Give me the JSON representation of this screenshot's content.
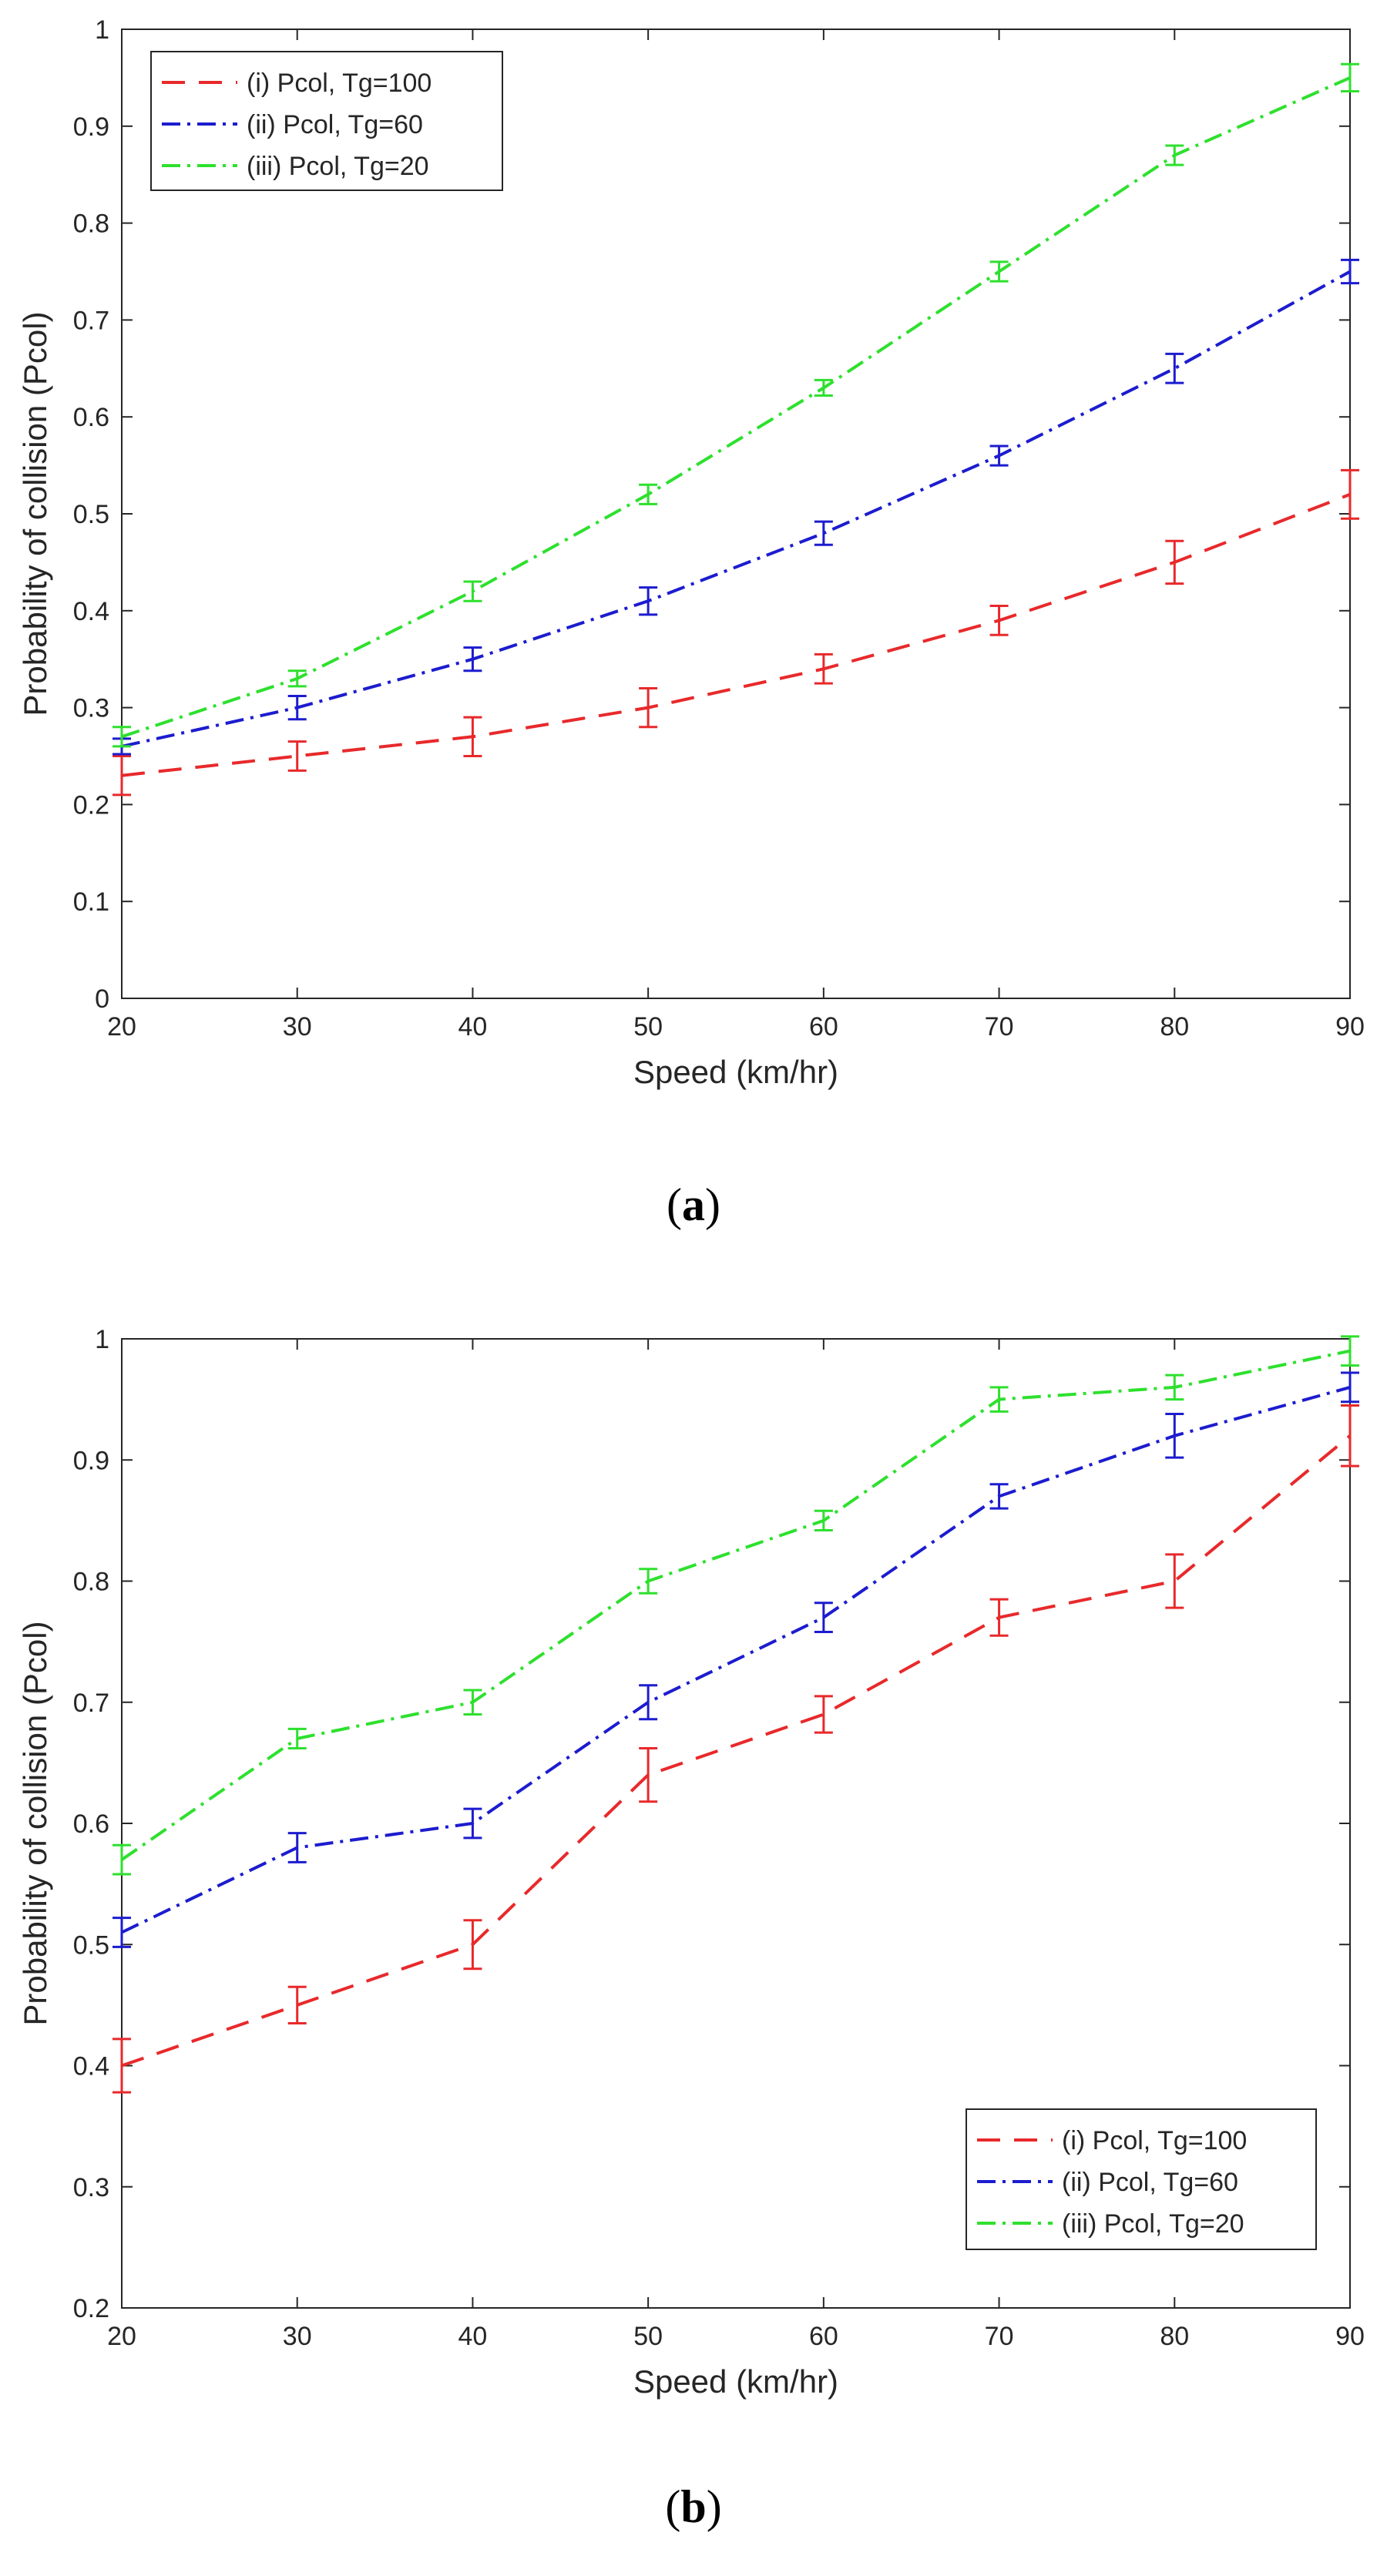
{
  "chart_data": [
    {
      "panel": "a",
      "caption": "a",
      "type": "line",
      "xlabel": "Speed (km/hr)",
      "ylabel": "Probability of collision (Pcol)",
      "xlim": [
        20,
        90
      ],
      "ylim": [
        0,
        1
      ],
      "xticks": [
        20,
        30,
        40,
        50,
        60,
        70,
        80,
        90
      ],
      "yticks": [
        0,
        0.1,
        0.2,
        0.3,
        0.4,
        0.5,
        0.6,
        0.7,
        0.8,
        0.9,
        1
      ],
      "ytick_labels": [
        "0",
        "0.1",
        "0.2",
        "0.3",
        "0.4",
        "0.5",
        "0.6",
        "0.7",
        "0.8",
        "0.9",
        "1"
      ],
      "legend_position": "top-left",
      "x": [
        20,
        30,
        40,
        50,
        60,
        70,
        80,
        90
      ],
      "series": [
        {
          "name": "(i) Pcol, Tg=100",
          "color": "#e8292b",
          "dash": "dashed",
          "values": [
            0.23,
            0.25,
            0.27,
            0.3,
            0.34,
            0.39,
            0.45,
            0.52
          ],
          "errors": [
            0.02,
            0.015,
            0.02,
            0.02,
            0.015,
            0.015,
            0.022,
            0.025
          ]
        },
        {
          "name": "(ii) Pcol, Tg=60",
          "color": "#1c1ccf",
          "dash": "dashdot",
          "values": [
            0.26,
            0.3,
            0.35,
            0.41,
            0.48,
            0.56,
            0.65,
            0.75
          ],
          "errors": [
            0.008,
            0.012,
            0.012,
            0.014,
            0.012,
            0.01,
            0.015,
            0.012
          ]
        },
        {
          "name": "(iii) Pcol, Tg=20",
          "color": "#2ee02e",
          "dash": "dashdot",
          "values": [
            0.27,
            0.33,
            0.42,
            0.52,
            0.63,
            0.75,
            0.87,
            0.95
          ],
          "errors": [
            0.01,
            0.008,
            0.01,
            0.01,
            0.008,
            0.01,
            0.01,
            0.014
          ]
        }
      ]
    },
    {
      "panel": "b",
      "caption": "b",
      "type": "line",
      "xlabel": "Speed (km/hr)",
      "ylabel": "Probability of collision (Pcol)",
      "xlim": [
        20,
        90
      ],
      "ylim": [
        0.2,
        1
      ],
      "xticks": [
        20,
        30,
        40,
        50,
        60,
        70,
        80,
        90
      ],
      "yticks": [
        0.2,
        0.3,
        0.4,
        0.5,
        0.6,
        0.7,
        0.8,
        0.9,
        1
      ],
      "ytick_labels": [
        "0.2",
        "0.3",
        "0.4",
        "0.5",
        "0.6",
        "0.7",
        "0.8",
        "0.9",
        "1"
      ],
      "legend_position": "bottom-right",
      "x": [
        20,
        30,
        40,
        50,
        60,
        70,
        80,
        90
      ],
      "series": [
        {
          "name": "(i) Pcol, Tg=100",
          "color": "#e8292b",
          "dash": "dashed",
          "values": [
            0.4,
            0.45,
            0.5,
            0.64,
            0.69,
            0.77,
            0.8,
            0.92
          ],
          "errors": [
            0.022,
            0.015,
            0.02,
            0.022,
            0.015,
            0.015,
            0.022,
            0.025
          ]
        },
        {
          "name": "(ii) Pcol, Tg=60",
          "color": "#1c1ccf",
          "dash": "dashdot",
          "values": [
            0.51,
            0.58,
            0.6,
            0.7,
            0.77,
            0.87,
            0.92,
            0.96
          ],
          "errors": [
            0.012,
            0.012,
            0.012,
            0.014,
            0.012,
            0.01,
            0.018,
            0.012
          ]
        },
        {
          "name": "(iii) Pcol, Tg=20",
          "color": "#2ee02e",
          "dash": "dashdot",
          "values": [
            0.57,
            0.67,
            0.7,
            0.8,
            0.85,
            0.95,
            0.96,
            0.99
          ],
          "errors": [
            0.012,
            0.008,
            0.01,
            0.01,
            0.008,
            0.01,
            0.01,
            0.012
          ]
        }
      ]
    }
  ]
}
